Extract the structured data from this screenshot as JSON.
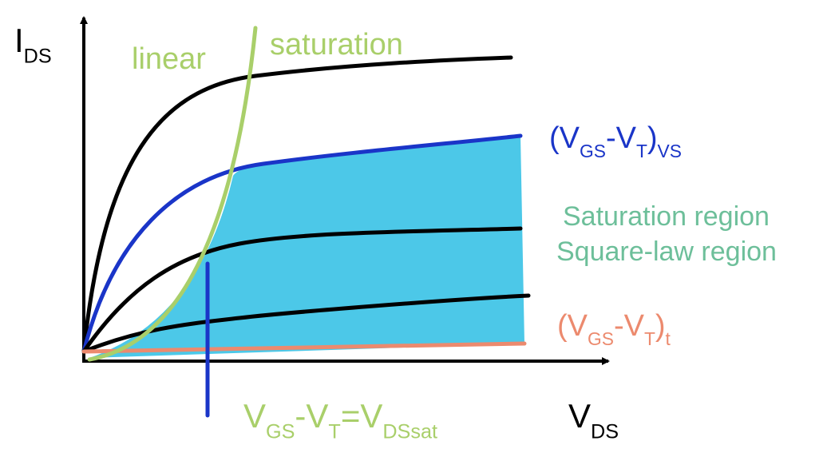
{
  "y_axis_label": [
    "I",
    "DS"
  ],
  "x_axis_label": [
    "V",
    "DS"
  ],
  "region_labels": {
    "linear": "linear",
    "saturation": "saturation"
  },
  "curve_labels": {
    "vs": [
      "(V",
      "GS",
      "-V",
      "T",
      ")",
      "VS"
    ],
    "t": [
      "(V",
      "GS",
      "-V",
      "T",
      ")",
      "t"
    ]
  },
  "region_note": [
    "Saturation region",
    "Square-law region"
  ],
  "boundary_label": [
    "V",
    "GS",
    "-V",
    "T",
    "=V",
    "DSsat"
  ]
}
